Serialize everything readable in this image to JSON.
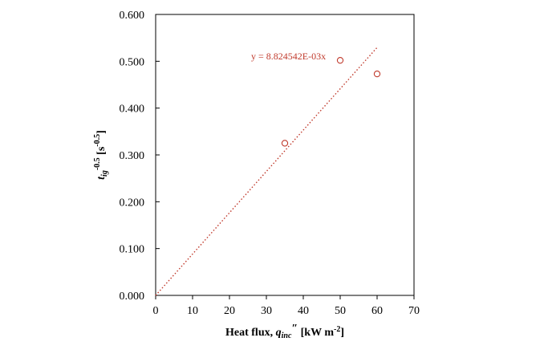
{
  "chart_data": {
    "type": "scatter",
    "title": "",
    "xlabel": {
      "base": "Heat flux, ",
      "var": "q",
      "var_sub": "inc",
      "primes": "″",
      "unit_open": " [kW m",
      "unit_exp": "-2",
      "unit_close": "]"
    },
    "ylabel": {
      "var": "t",
      "var_sub": "ig",
      "var_exp": "-0.5",
      "unit_open": " [s",
      "unit_exp": "-0.5",
      "unit_close": "]"
    },
    "xlim": [
      0,
      70
    ],
    "ylim": [
      0,
      0.6
    ],
    "x_ticks": [
      "0",
      "10",
      "20",
      "30",
      "40",
      "50",
      "60",
      "70"
    ],
    "y_ticks": [
      "0.000",
      "0.100",
      "0.200",
      "0.300",
      "0.400",
      "0.500",
      "0.600"
    ],
    "grid": false,
    "series": [
      {
        "marker": "open-circle",
        "color": "#c0392b",
        "points": [
          {
            "x": 35,
            "y": 0.325
          },
          {
            "x": 50,
            "y": 0.502
          },
          {
            "x": 60,
            "y": 0.473
          }
        ]
      }
    ],
    "trendline": {
      "style": "dotted",
      "color": "#c0392b",
      "slope": 0.008824542,
      "intercept": 0,
      "x_range": [
        0,
        60
      ],
      "equation": "y = 8.824542E-03x"
    }
  }
}
